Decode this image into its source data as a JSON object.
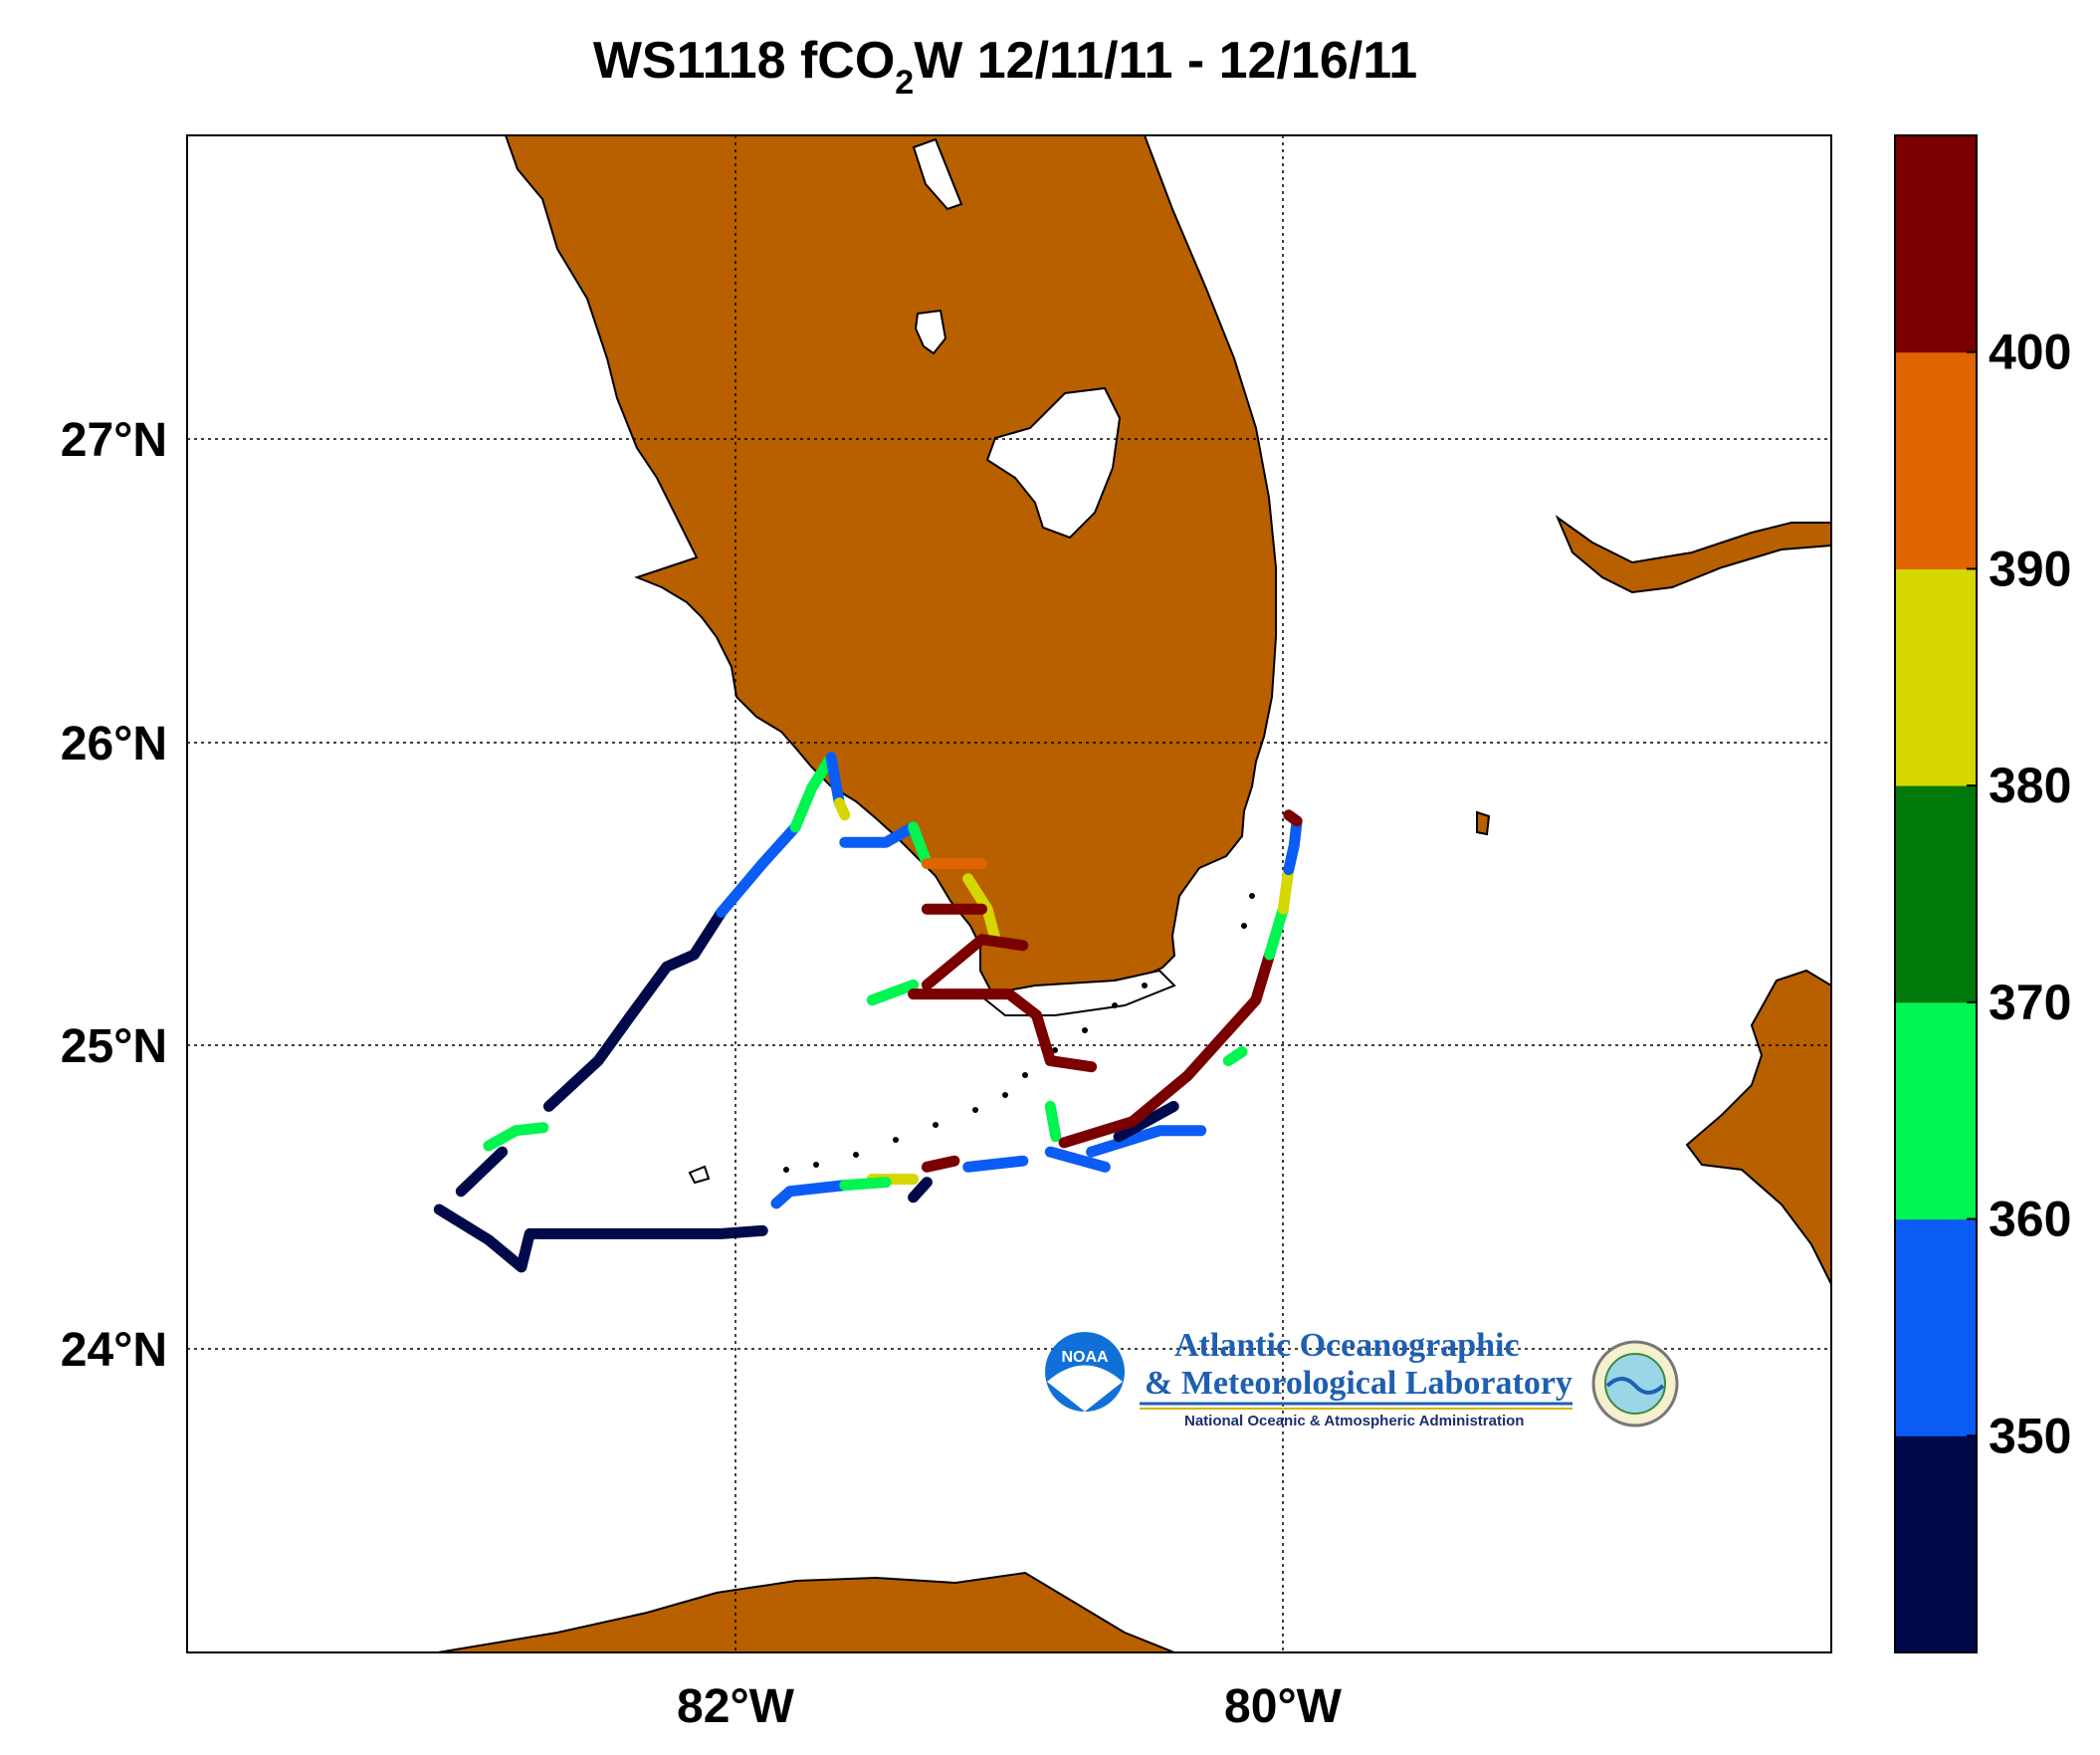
{
  "title": {
    "prefix": "WS1118 fCO",
    "sub": "2",
    "suffix": "W 12/11/11 - 12/16/11"
  },
  "axes": {
    "lon_ticks": [
      {
        "value": -82,
        "label": "82°W"
      },
      {
        "value": -80,
        "label": "80°W"
      }
    ],
    "lat_ticks": [
      {
        "value": 27,
        "label": "27°N"
      },
      {
        "value": 26,
        "label": "26°N"
      },
      {
        "value": 25,
        "label": "25°N"
      },
      {
        "value": 24,
        "label": "24°N"
      }
    ],
    "lon_range": [
      -84,
      -78
    ],
    "lat_range": [
      23,
      28
    ]
  },
  "colorbar": {
    "min": 340,
    "max": 410,
    "labels": [
      "350",
      "360",
      "370",
      "380",
      "390",
      "400"
    ],
    "colors": [
      "#000a4a",
      "#0a5cf5",
      "#00f550",
      "#00780a",
      "#d6d600",
      "#e06400",
      "#7a0000"
    ]
  },
  "logo": {
    "line1": "Atlantic Oceanographic",
    "line2": "& Meteorological Laboratory",
    "line3": "National Oceanic & Atmospheric Administration",
    "badge": "NOAA"
  },
  "colors": {
    "land": "#b86000",
    "water": "#ffffff"
  },
  "chart_data": {
    "type": "scatter",
    "grid": true,
    "tracks": [
      {
        "value": 345,
        "points": [
          [
            -82.7,
            24.38
          ],
          [
            -82.5,
            24.38
          ],
          [
            -82.2,
            24.38
          ],
          [
            -82.05,
            24.38
          ],
          [
            -81.9,
            24.39
          ]
        ]
      },
      {
        "value": 345,
        "points": [
          [
            -83.08,
            24.46
          ],
          [
            -82.9,
            24.36
          ],
          [
            -82.78,
            24.27
          ],
          [
            -82.75,
            24.38
          ],
          [
            -82.7,
            24.38
          ]
        ]
      },
      {
        "value": 345,
        "points": [
          [
            -83.0,
            24.52
          ],
          [
            -82.85,
            24.65
          ]
        ]
      },
      {
        "value": 345,
        "points": [
          [
            -82.68,
            24.8
          ],
          [
            -82.5,
            24.95
          ],
          [
            -82.38,
            25.1
          ],
          [
            -82.25,
            25.26
          ],
          [
            -82.15,
            25.3
          ],
          [
            -82.05,
            25.44
          ]
        ]
      },
      {
        "value": 355,
        "points": [
          [
            -82.05,
            25.44
          ],
          [
            -81.9,
            25.6
          ],
          [
            -81.78,
            25.72
          ]
        ]
      },
      {
        "value": 365,
        "points": [
          [
            -81.78,
            25.72
          ],
          [
            -81.72,
            25.85
          ],
          [
            -81.65,
            25.95
          ]
        ]
      },
      {
        "value": 355,
        "points": [
          [
            -81.65,
            25.95
          ],
          [
            -81.62,
            25.8
          ]
        ]
      },
      {
        "value": 385,
        "points": [
          [
            -81.62,
            25.8
          ],
          [
            -81.6,
            25.76
          ]
        ]
      },
      {
        "value": 365,
        "points": [
          [
            -82.9,
            24.67
          ],
          [
            -82.8,
            24.72
          ],
          [
            -82.7,
            24.73
          ]
        ]
      },
      {
        "value": 355,
        "points": [
          [
            -81.6,
            25.67
          ],
          [
            -81.45,
            25.67
          ],
          [
            -81.35,
            25.72
          ]
        ]
      },
      {
        "value": 365,
        "points": [
          [
            -81.35,
            25.72
          ],
          [
            -81.3,
            25.6
          ]
        ]
      },
      {
        "value": 395,
        "points": [
          [
            -81.3,
            25.6
          ],
          [
            -81.1,
            25.6
          ]
        ]
      },
      {
        "value": 385,
        "points": [
          [
            -81.15,
            25.55
          ],
          [
            -81.08,
            25.45
          ],
          [
            -81.05,
            25.35
          ]
        ]
      },
      {
        "value": 405,
        "points": [
          [
            -81.3,
            25.45
          ],
          [
            -81.1,
            25.45
          ]
        ]
      },
      {
        "value": 405,
        "points": [
          [
            -81.3,
            25.2
          ],
          [
            -81.1,
            25.35
          ],
          [
            -80.95,
            25.33
          ]
        ]
      },
      {
        "value": 365,
        "points": [
          [
            -81.5,
            25.15
          ],
          [
            -81.35,
            25.2
          ]
        ]
      },
      {
        "value": 405,
        "points": [
          [
            -81.35,
            25.17
          ],
          [
            -81.0,
            25.17
          ],
          [
            -80.9,
            25.1
          ],
          [
            -80.85,
            24.95
          ],
          [
            -80.7,
            24.93
          ]
        ]
      },
      {
        "value": 365,
        "points": [
          [
            -80.85,
            24.8
          ],
          [
            -80.83,
            24.7
          ]
        ]
      },
      {
        "value": 355,
        "points": [
          [
            -80.85,
            24.65
          ],
          [
            -80.65,
            24.6
          ]
        ]
      },
      {
        "value": 355,
        "points": [
          [
            -80.7,
            24.65
          ],
          [
            -80.45,
            24.72
          ],
          [
            -80.3,
            24.72
          ]
        ]
      },
      {
        "value": 345,
        "points": [
          [
            -80.6,
            24.7
          ],
          [
            -80.4,
            24.8
          ]
        ]
      },
      {
        "value": 405,
        "points": [
          [
            -80.8,
            24.68
          ],
          [
            -80.55,
            24.75
          ],
          [
            -80.35,
            24.9
          ],
          [
            -80.25,
            25.0
          ],
          [
            -80.1,
            25.15
          ],
          [
            -80.05,
            25.3
          ]
        ]
      },
      {
        "value": 365,
        "points": [
          [
            -80.2,
            24.95
          ],
          [
            -80.15,
            24.98
          ]
        ]
      },
      {
        "value": 365,
        "points": [
          [
            -80.05,
            25.3
          ],
          [
            -80.0,
            25.45
          ]
        ]
      },
      {
        "value": 385,
        "points": [
          [
            -80.0,
            25.45
          ],
          [
            -79.98,
            25.58
          ]
        ]
      },
      {
        "value": 355,
        "points": [
          [
            -79.98,
            25.58
          ],
          [
            -79.96,
            25.66
          ],
          [
            -79.95,
            25.74
          ]
        ]
      },
      {
        "value": 405,
        "points": [
          [
            -79.95,
            25.74
          ],
          [
            -79.98,
            25.76
          ]
        ]
      },
      {
        "value": 385,
        "points": [
          [
            -81.5,
            24.56
          ],
          [
            -81.35,
            24.56
          ]
        ]
      },
      {
        "value": 355,
        "points": [
          [
            -81.85,
            24.48
          ],
          [
            -81.8,
            24.52
          ],
          [
            -81.6,
            24.54
          ]
        ]
      },
      {
        "value": 365,
        "points": [
          [
            -81.6,
            24.54
          ],
          [
            -81.45,
            24.55
          ]
        ]
      },
      {
        "value": 345,
        "points": [
          [
            -81.35,
            24.5
          ],
          [
            -81.3,
            24.55
          ]
        ]
      },
      {
        "value": 405,
        "points": [
          [
            -81.3,
            24.6
          ],
          [
            -81.2,
            24.62
          ]
        ]
      },
      {
        "value": 355,
        "points": [
          [
            -81.15,
            24.6
          ],
          [
            -80.95,
            24.62
          ]
        ]
      }
    ]
  }
}
